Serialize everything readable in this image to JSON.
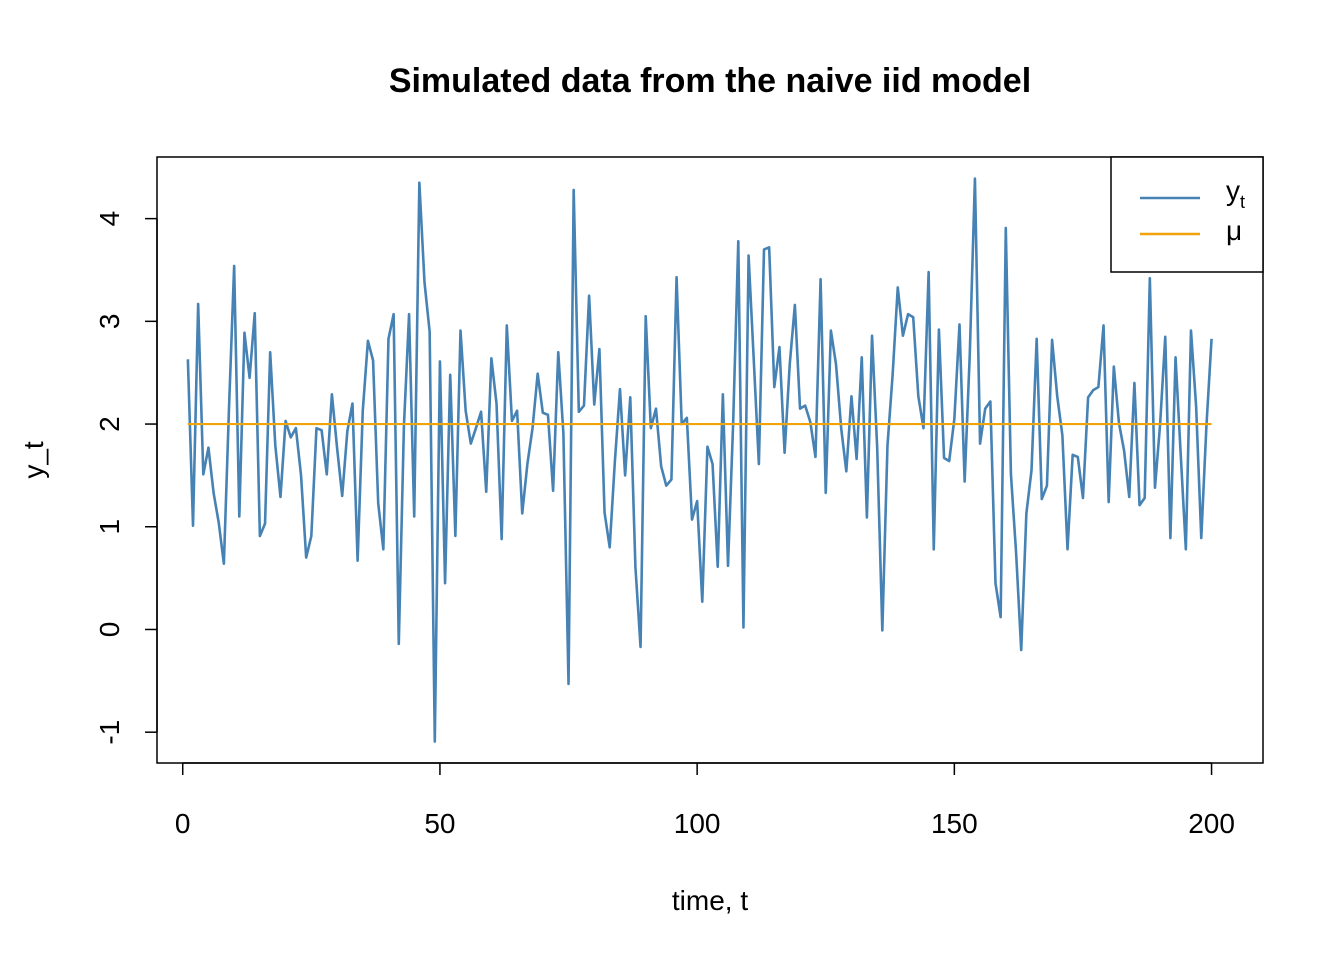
{
  "chart_data": {
    "type": "line",
    "title": "Simulated data from the naive iid model",
    "xlabel": "time, t",
    "ylabel": "y_t",
    "xlim": [
      -5,
      210
    ],
    "ylim": [
      -1.3,
      4.6
    ],
    "x_ticks": [
      0,
      50,
      100,
      150,
      200
    ],
    "y_ticks": [
      -1,
      0,
      1,
      2,
      3,
      4
    ],
    "x_tick_labels": [
      "0",
      "50",
      "100",
      "150",
      "200"
    ],
    "y_tick_labels": [
      "-1",
      "0",
      "1",
      "2",
      "3",
      "4"
    ],
    "grid": false,
    "legend_position": "top-right",
    "series": [
      {
        "legend_main": "y",
        "legend_sub": "t",
        "color": "#4682B4",
        "x_start": 1,
        "values": [
          2.63,
          1.01,
          3.17,
          1.51,
          1.77,
          1.33,
          1.04,
          0.64,
          2.16,
          3.54,
          1.1,
          2.89,
          2.45,
          3.08,
          0.91,
          1.03,
          2.7,
          1.79,
          1.29,
          2.03,
          1.87,
          1.96,
          1.5,
          0.7,
          0.91,
          1.96,
          1.94,
          1.51,
          2.29,
          1.77,
          1.3,
          1.93,
          2.2,
          0.67,
          2.13,
          2.81,
          2.62,
          1.23,
          0.78,
          2.83,
          3.07,
          -0.14,
          1.98,
          3.07,
          1.1,
          4.35,
          3.38,
          2.9,
          -1.09,
          2.61,
          0.45,
          2.48,
          0.91,
          2.91,
          2.13,
          1.81,
          1.96,
          2.12,
          1.34,
          2.64,
          2.2,
          0.88,
          2.96,
          2.03,
          2.13,
          1.13,
          1.61,
          1.96,
          2.49,
          2.11,
          2.09,
          1.35,
          2.7,
          1.91,
          -0.53,
          4.28,
          2.12,
          2.18,
          3.25,
          2.19,
          2.73,
          1.14,
          0.8,
          1.63,
          2.34,
          1.5,
          2.26,
          0.61,
          -0.17,
          3.05,
          1.96,
          2.15,
          1.59,
          1.4,
          1.46,
          3.43,
          2.0,
          2.06,
          1.07,
          1.25,
          0.27,
          1.78,
          1.61,
          0.61,
          2.29,
          0.62,
          2.01,
          3.78,
          0.02,
          3.64,
          2.63,
          1.61,
          3.7,
          3.72,
          2.36,
          2.75,
          1.72,
          2.58,
          3.16,
          2.15,
          2.18,
          2.02,
          1.68,
          3.41,
          1.33,
          2.91,
          2.58,
          1.96,
          1.54,
          2.27,
          1.66,
          2.65,
          1.09,
          2.86,
          1.77,
          -0.01,
          1.79,
          2.48,
          3.33,
          2.86,
          3.07,
          3.04,
          2.27,
          1.96,
          3.48,
          0.78,
          2.92,
          1.67,
          1.64,
          2.05,
          2.97,
          1.44,
          2.68,
          4.39,
          1.81,
          2.15,
          2.22,
          0.45,
          0.12,
          3.91,
          1.51,
          0.75,
          -0.2,
          1.13,
          1.55,
          2.83,
          1.27,
          1.4,
          2.82,
          2.27,
          1.89,
          0.78,
          1.7,
          1.68,
          1.28,
          2.26,
          2.33,
          2.36,
          2.96,
          1.24,
          2.56,
          2.01,
          1.74,
          1.29,
          2.4,
          1.21,
          1.28,
          3.42,
          1.38,
          2.0,
          2.85,
          0.89,
          2.65,
          1.71,
          0.78,
          2.91,
          2.17,
          0.89,
          1.98,
          2.83
        ]
      },
      {
        "legend_main": "μ",
        "legend_sub": "",
        "color": "#F0A30A",
        "x": [
          1,
          200
        ],
        "values": [
          2,
          2
        ]
      }
    ]
  }
}
